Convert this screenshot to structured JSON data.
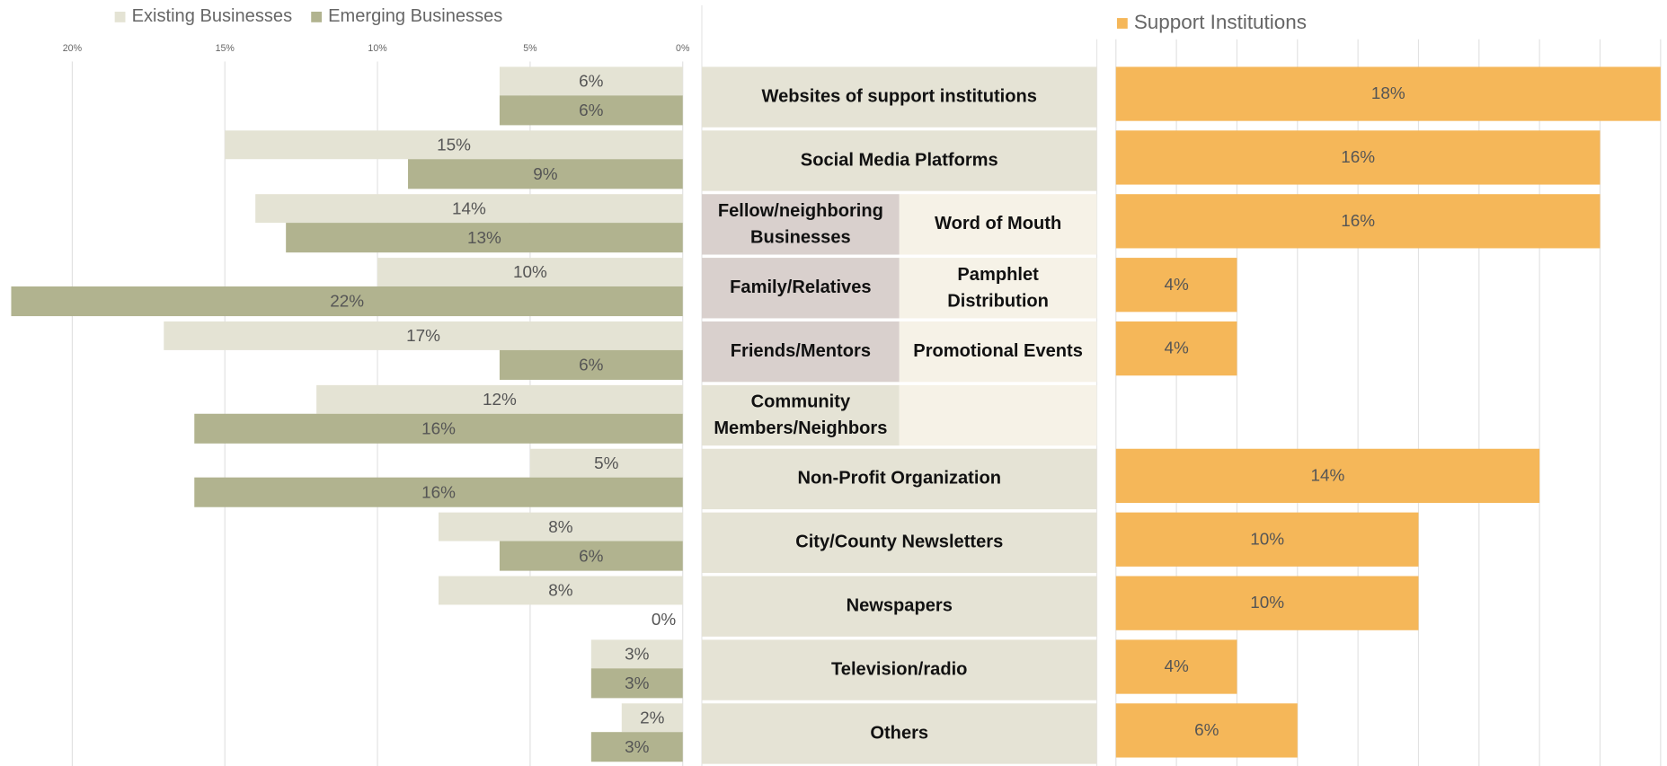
{
  "chart_data": {
    "type": "bar",
    "orientation": "horizontal",
    "categories": [
      "Websites of support institutions",
      "Social Media Platforms",
      "Fellow/neighboring Businesses",
      "Family/Relatives",
      "Friends/Mentors",
      "Community Members/Neighbors",
      "Non-Profit Organization",
      "City/County Newsletters",
      "Newspapers",
      "Television/radio",
      "Others"
    ],
    "right_categories": [
      null,
      null,
      "Word of Mouth",
      "Pamphlet Distribution",
      "Promotional Events",
      null,
      null,
      null,
      null,
      null,
      null
    ],
    "series": [
      {
        "name": "Existing Businesses",
        "color": "#e4e3d4",
        "values": [
          6,
          15,
          14,
          10,
          17,
          12,
          5,
          8,
          8,
          3,
          2
        ],
        "value_labels": [
          "6%",
          "15%",
          "14%",
          "10%",
          "17%",
          "12%",
          "5%",
          "8%",
          "8%",
          "3%",
          "2%"
        ]
      },
      {
        "name": "Emerging Businesses",
        "color": "#b1b38f",
        "values": [
          6,
          9,
          13,
          22,
          6,
          16,
          16,
          6,
          0,
          3,
          3
        ],
        "value_labels": [
          "6%",
          "9%",
          "13%",
          "22%",
          "6%",
          "16%",
          "16%",
          "6%",
          "0%",
          "3%",
          "3%"
        ]
      },
      {
        "name": "Support Institutions",
        "color": "#f5b759",
        "axis": "x2",
        "values": [
          18,
          16,
          16,
          4,
          4,
          null,
          14,
          10,
          10,
          4,
          6
        ],
        "value_labels": [
          "18%",
          "16%",
          "16%",
          "4%",
          "4%",
          null,
          "14%",
          "10%",
          "10%",
          "4%",
          "6%"
        ]
      }
    ],
    "xlim": [
      0,
      22.33
    ],
    "xticks": [
      {
        "value": 20,
        "label": "20%"
      },
      {
        "value": 15,
        "label": "15%"
      },
      {
        "value": 10,
        "label": "10%"
      },
      {
        "value": 5,
        "label": "5%"
      },
      {
        "value": 0,
        "label": "0%"
      }
    ],
    "x2lim": [
      0,
      18
    ],
    "x2ticks": [
      0,
      2,
      4,
      6,
      8,
      10,
      12,
      14,
      16,
      18
    ],
    "grid": true
  }
}
